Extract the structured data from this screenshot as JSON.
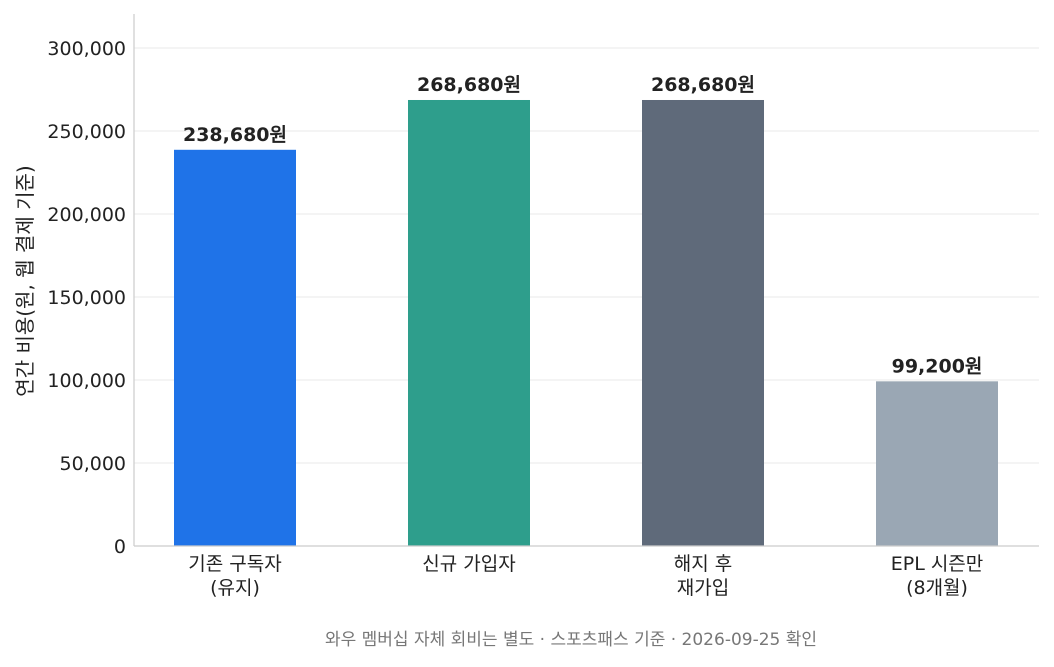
{
  "chart_data": {
    "type": "bar",
    "categories": [
      [
        "기존 구독자",
        "(유지)"
      ],
      [
        "신규 가입자"
      ],
      [
        "해지 후",
        "재가입"
      ],
      [
        "EPL 시즌만",
        "(8개월)"
      ]
    ],
    "values": [
      238680,
      268680,
      268680,
      99200
    ],
    "value_labels": [
      "238,680원",
      "268,680원",
      "268,680원",
      "99,200원"
    ],
    "bar_colors": [
      "#1f73e8",
      "#2e9e8c",
      "#5f6a7a",
      "#9aa7b4"
    ],
    "ylabel": "연간 비용(원, 웹 결제 기준)",
    "ylim": [
      0,
      320000
    ],
    "yticks": [
      0,
      50000,
      100000,
      150000,
      200000,
      250000,
      300000
    ],
    "ytick_labels": [
      "0",
      "50,000",
      "100,000",
      "150,000",
      "200,000",
      "250,000",
      "300,000"
    ],
    "grid": true,
    "grid_axis": "y",
    "footnote": "와우 멤버십 자체 회비는 별도 · 스포츠패스 기준 · 2026-09-25 확인"
  }
}
